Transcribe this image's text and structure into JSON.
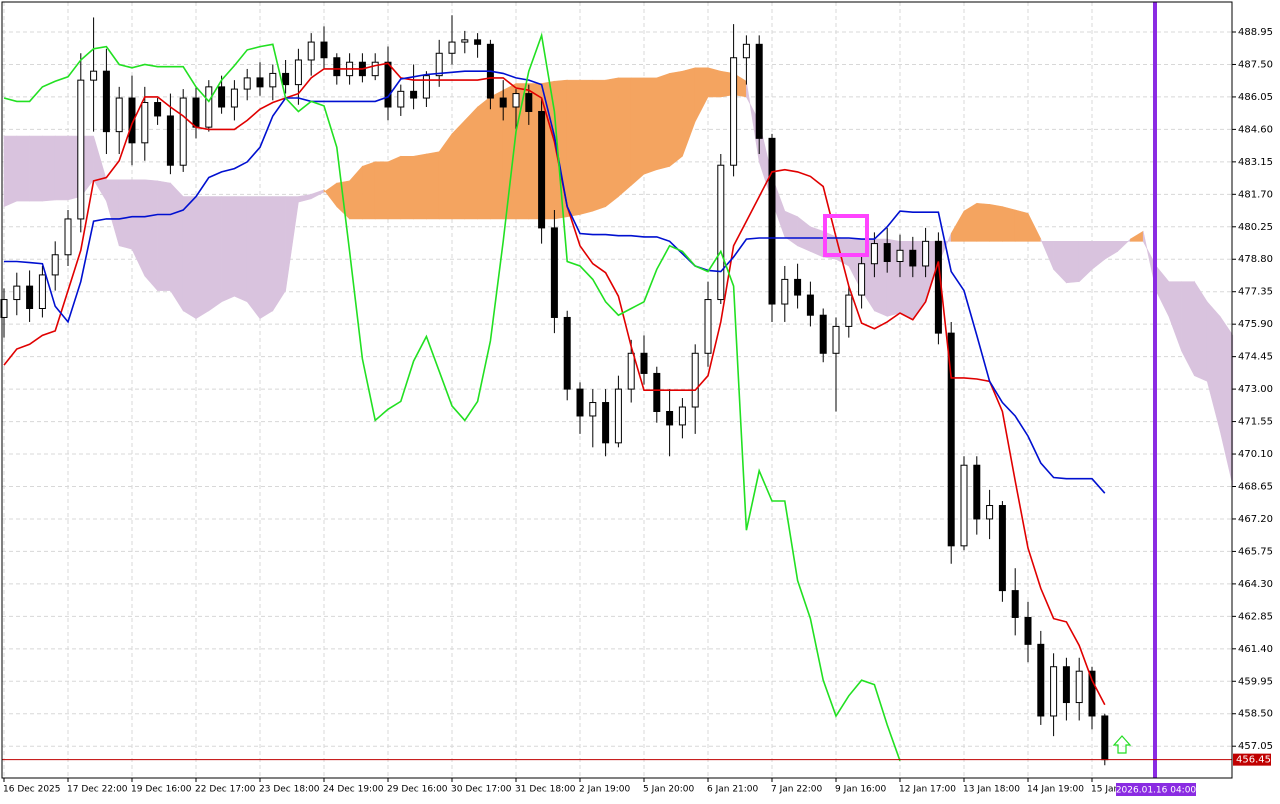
{
  "chart_data": {
    "type": "candlestick",
    "categories": [
      "16 Dec 2025",
      null,
      null,
      null,
      null,
      "17 Dec 22:00",
      null,
      null,
      null,
      null,
      "19 Dec 16:00",
      null,
      null,
      null,
      null,
      "22 Dec 17:00",
      null,
      null,
      null,
      null,
      "23 Dec 18:00",
      null,
      null,
      null,
      null,
      "24 Dec 19:00",
      null,
      null,
      null,
      null,
      "29 Dec 16:00",
      null,
      null,
      null,
      null,
      "30 Dec 17:00",
      null,
      null,
      null,
      null,
      "31 Dec 18:00",
      null,
      null,
      null,
      null,
      "2 Jan 19:00",
      null,
      null,
      null,
      null,
      "5 Jan 20:00",
      null,
      null,
      null,
      null,
      "6 Jan 21:00",
      null,
      null,
      null,
      null,
      "7 Jan 22:00",
      null,
      null,
      null,
      null,
      "9 Jan 16:00",
      null,
      null,
      null,
      null,
      "12 Jan 17:00",
      null,
      null,
      null,
      null,
      "13 Jan 18:00",
      null,
      null,
      null,
      null,
      "14 Jan 19:00",
      null,
      null,
      null,
      null,
      "15 Jan",
      null,
      null,
      null,
      null,
      null,
      null,
      null,
      null,
      null,
      null,
      null
    ],
    "open": [
      476.2,
      477.0,
      477.6,
      476.6,
      478.1,
      479.0,
      480.6,
      486.8,
      487.2,
      484.5,
      486.0,
      484.0,
      485.8,
      485.2,
      483.0,
      486.0,
      484.7,
      486.5,
      485.6,
      486.4,
      486.9,
      486.5,
      487.1,
      486.6,
      487.7,
      488.5,
      487.8,
      487.0,
      487.6,
      487.0,
      487.6,
      485.6,
      486.3,
      486.0,
      487.0,
      488.0,
      488.5,
      488.6,
      488.4,
      486.0,
      485.6,
      486.2,
      485.4,
      480.2,
      476.2,
      473.0,
      471.8,
      472.4,
      470.6,
      473.0,
      474.6,
      473.7,
      472.0,
      471.4,
      472.2,
      474.6,
      477.0,
      483.0,
      487.8,
      488.4,
      484.2,
      476.8,
      477.9,
      477.2,
      476.3,
      474.6,
      475.8,
      477.2,
      478.6,
      479.5,
      478.7,
      479.2,
      478.5,
      479.6,
      475.5,
      466.0,
      469.6,
      467.2,
      467.8,
      464.0,
      462.8,
      461.6,
      458.4,
      460.6,
      459.0,
      460.4,
      458.4,
      null,
      null,
      null,
      null,
      null,
      null,
      null,
      null,
      null,
      null
    ],
    "high": [
      477.5,
      478.2,
      478.3,
      478.5,
      479.6,
      481.0,
      488.0,
      489.6,
      488.2,
      486.5,
      487.0,
      486.5,
      486.0,
      486.2,
      486.4,
      486.5,
      486.8,
      487.0,
      486.8,
      487.3,
      487.6,
      487.5,
      487.7,
      488.2,
      488.9,
      489.2,
      488.0,
      488.0,
      488.0,
      488.0,
      488.3,
      486.6,
      487.5,
      487.2,
      488.6,
      489.7,
      489.0,
      488.9,
      488.6,
      486.8,
      486.4,
      486.6,
      486.0,
      481.0,
      476.5,
      473.3,
      473.0,
      473.0,
      473.6,
      475.2,
      475.4,
      474.0,
      473.0,
      472.6,
      475.0,
      477.8,
      483.5,
      489.3,
      488.8,
      488.8,
      484.4,
      478.5,
      478.6,
      477.8,
      476.6,
      476.2,
      477.6,
      479.0,
      480.0,
      480.2,
      479.9,
      479.8,
      480.2,
      480.0,
      476.0,
      470.0,
      470.0,
      468.5,
      468.0,
      465.0,
      463.5,
      462.2,
      461.2,
      461.0,
      461.0,
      460.6,
      458.5,
      null,
      null,
      null,
      null,
      null,
      null,
      null,
      null,
      null,
      null
    ],
    "low": [
      475.3,
      476.3,
      476.0,
      476.2,
      477.4,
      478.5,
      480.0,
      484.5,
      483.5,
      483.5,
      483.0,
      483.2,
      484.8,
      482.6,
      482.7,
      484.2,
      484.5,
      485.3,
      485.0,
      485.9,
      486.1,
      485.9,
      486.2,
      485.7,
      487.0,
      487.3,
      486.6,
      486.6,
      486.7,
      486.8,
      485.0,
      485.2,
      485.5,
      485.6,
      486.5,
      487.5,
      488.0,
      487.8,
      485.5,
      485.0,
      484.6,
      484.8,
      479.5,
      475.5,
      472.5,
      471.0,
      470.4,
      470.0,
      470.4,
      472.4,
      473.2,
      471.5,
      470.0,
      470.8,
      471.0,
      474.0,
      476.8,
      482.5,
      486.6,
      483.5,
      476.0,
      476.0,
      476.6,
      475.8,
      474.2,
      472.0,
      475.3,
      476.6,
      478.0,
      478.2,
      478.0,
      478.0,
      478.0,
      475.0,
      465.2,
      465.8,
      466.5,
      466.3,
      463.5,
      462.0,
      460.8,
      458.0,
      457.5,
      458.2,
      458.2,
      457.8,
      456.2,
      null,
      null,
      null,
      null,
      null,
      null,
      null,
      null,
      null,
      null
    ],
    "close": [
      477.0,
      477.6,
      476.6,
      478.1,
      479.0,
      480.6,
      486.8,
      487.2,
      484.5,
      486.0,
      484.0,
      485.8,
      485.2,
      483.0,
      486.0,
      484.7,
      486.5,
      485.6,
      486.4,
      486.9,
      486.5,
      487.1,
      486.6,
      487.7,
      488.5,
      487.8,
      487.0,
      487.6,
      487.0,
      487.6,
      485.6,
      486.3,
      486.0,
      487.0,
      488.0,
      488.5,
      488.6,
      488.4,
      486.0,
      485.6,
      486.2,
      485.4,
      480.2,
      476.2,
      473.0,
      471.8,
      472.4,
      470.6,
      473.0,
      474.6,
      473.7,
      472.0,
      471.4,
      472.2,
      474.6,
      477.0,
      483.0,
      487.8,
      488.4,
      484.2,
      476.8,
      477.9,
      477.2,
      476.3,
      474.6,
      475.8,
      477.2,
      478.6,
      479.5,
      478.7,
      479.2,
      478.5,
      479.6,
      475.5,
      466.0,
      469.6,
      467.2,
      467.8,
      464.0,
      462.8,
      461.6,
      458.4,
      460.6,
      459.0,
      460.4,
      458.4,
      456.45,
      null,
      null,
      null,
      null,
      null,
      null,
      null,
      null,
      null,
      null
    ],
    "up_color": "#ffffff",
    "down_color": "#000000",
    "wick_color": "#000000",
    "lines": [
      {
        "color": "#e00000",
        "values": [
          474.07,
          474.79,
          475.0,
          475.4,
          475.6,
          477.4,
          479.2,
          482.3,
          482.45,
          483.2,
          484.85,
          486.05,
          486.05,
          485.6,
          485.2,
          484.7,
          484.6,
          484.6,
          484.6,
          485.0,
          485.5,
          485.8,
          486.0,
          486.2,
          486.9,
          487.3,
          487.3,
          487.3,
          487.3,
          487.45,
          487.55,
          486.9,
          486.8,
          486.8,
          486.8,
          486.8,
          486.8,
          486.8,
          486.9,
          486.9,
          486.45,
          486.35,
          486.0,
          484.05,
          481.15,
          479.4,
          478.6,
          478.2,
          477.15,
          474.9,
          472.95,
          472.95,
          472.95,
          472.95,
          472.95,
          473.6,
          476.0,
          479.4,
          480.5,
          481.6,
          482.7,
          482.8,
          482.7,
          482.5,
          482.05,
          479.8,
          477.6,
          475.95,
          475.7,
          476.0,
          476.4,
          476.1,
          476.9,
          478.7,
          473.5,
          473.5,
          473.45,
          473.35,
          472.0,
          468.9,
          465.9,
          464.1,
          462.75,
          462.6,
          461.55,
          460.0,
          458.9,
          null,
          null,
          null,
          null,
          null,
          null,
          null,
          null,
          null,
          null
        ]
      },
      {
        "color": "#0010d0",
        "values": [
          478.7,
          478.7,
          478.65,
          478.6,
          476.7,
          476.0,
          477.8,
          480.5,
          480.6,
          480.6,
          480.7,
          480.7,
          480.8,
          480.8,
          481.0,
          481.6,
          482.45,
          482.7,
          482.85,
          483.15,
          483.8,
          485.2,
          486.0,
          486.0,
          485.85,
          485.85,
          485.85,
          485.85,
          485.85,
          485.85,
          486.05,
          486.85,
          486.95,
          487.05,
          487.1,
          487.15,
          487.2,
          487.2,
          487.2,
          487.1,
          486.9,
          486.8,
          486.6,
          484.3,
          481.15,
          479.95,
          479.9,
          479.9,
          479.85,
          479.85,
          479.8,
          479.8,
          479.6,
          479.05,
          478.5,
          478.3,
          478.25,
          478.9,
          479.7,
          479.75,
          479.75,
          479.75,
          479.75,
          479.75,
          479.75,
          479.75,
          479.75,
          479.7,
          479.7,
          480.25,
          480.95,
          480.9,
          480.9,
          480.9,
          478.25,
          477.4,
          475.4,
          473.35,
          472.4,
          471.8,
          470.9,
          469.7,
          469.05,
          469.0,
          469.0,
          469.0,
          468.35,
          null,
          null,
          null,
          null,
          null,
          null,
          null,
          null,
          null,
          null
        ]
      },
      {
        "color": "#22e022",
        "values": [
          486.0,
          485.85,
          485.85,
          486.5,
          486.75,
          486.95,
          487.7,
          488.2,
          488.3,
          487.5,
          487.35,
          487.5,
          487.4,
          487.4,
          487.4,
          486.5,
          485.85,
          486.8,
          487.45,
          488.15,
          488.3,
          488.4,
          486.0,
          485.4,
          485.85,
          485.65,
          483.8,
          479.15,
          474.35,
          471.6,
          472.1,
          472.45,
          474.25,
          475.35,
          473.8,
          472.25,
          471.6,
          472.45,
          475.15,
          479.6,
          484.5,
          487.2,
          488.8,
          485.4,
          478.7,
          478.5,
          477.9,
          476.9,
          476.3,
          476.6,
          476.9,
          478.35,
          479.4,
          479.15,
          478.5,
          478.25,
          479.15,
          477.6,
          466.7,
          469.35,
          468.0,
          468.0,
          464.45,
          462.75,
          460.0,
          458.4,
          459.3,
          460.0,
          459.8,
          458.0,
          456.4,
          null,
          null,
          null,
          null,
          null,
          null,
          null,
          null,
          null,
          null,
          null,
          null,
          null,
          null,
          null,
          null,
          null,
          null,
          null,
          null,
          null,
          null,
          null,
          null
        ]
      }
    ],
    "senkou_a": [
      484.3,
      484.3,
      484.3,
      484.3,
      484.3,
      484.3,
      484.3,
      484.3,
      482.35,
      482.35,
      482.35,
      482.35,
      482.3,
      482.2,
      481.6,
      481.6,
      481.6,
      481.6,
      481.6,
      481.6,
      481.6,
      481.6,
      481.6,
      481.6,
      481.7,
      481.9,
      481.15,
      480.6,
      480.6,
      480.6,
      480.6,
      480.6,
      480.6,
      480.6,
      480.6,
      480.6,
      480.6,
      480.6,
      480.6,
      480.6,
      480.6,
      480.6,
      480.6,
      480.6,
      480.7,
      480.8,
      480.95,
      481.15,
      481.6,
      482.1,
      482.6,
      482.8,
      482.95,
      483.4,
      484.95,
      486.05,
      486.05,
      486.15,
      486.05,
      484.95,
      482.5,
      480.95,
      480.7,
      480.25,
      480.05,
      479.8,
      479.7,
      479.7,
      479.7,
      479.7,
      479.6,
      479.6,
      479.6,
      479.6,
      479.6,
      479.6,
      479.6,
      479.6,
      479.6,
      479.6,
      479.6,
      479.6,
      479.6,
      479.6,
      479.6,
      479.6,
      479.6,
      479.6,
      479.6,
      479.6,
      478.5,
      477.8,
      477.8,
      477.8,
      476.9,
      476.25,
      475.4
    ],
    "senkou_b": [
      481.15,
      481.4,
      481.4,
      481.4,
      481.45,
      481.45,
      481.6,
      482.35,
      481.4,
      479.4,
      479.25,
      478.05,
      477.4,
      477.4,
      476.5,
      476.15,
      476.5,
      476.9,
      477.15,
      476.9,
      476.15,
      476.5,
      477.4,
      481.35,
      481.5,
      481.8,
      482.2,
      482.3,
      482.95,
      483.15,
      483.15,
      483.4,
      483.4,
      483.5,
      483.6,
      484.4,
      485.0,
      485.6,
      486.05,
      486.35,
      486.65,
      486.65,
      486.65,
      486.75,
      486.8,
      486.8,
      486.8,
      486.8,
      486.9,
      486.9,
      486.9,
      486.9,
      487.1,
      487.2,
      487.35,
      487.35,
      487.2,
      487.1,
      486.75,
      483.15,
      481.4,
      479.8,
      479.4,
      479.15,
      478.9,
      478.8,
      478.5,
      477.4,
      476.5,
      476.25,
      476.4,
      476.1,
      476.9,
      478.6,
      479.95,
      480.95,
      481.3,
      481.25,
      481.15,
      481.0,
      480.85,
      479.7,
      478.35,
      477.75,
      477.8,
      478.35,
      478.8,
      479.15,
      479.7,
      480.05,
      477.4,
      476.25,
      474.7,
      473.6,
      473.35,
      471.15,
      468.7
    ],
    "cloud_up_color": "#d9c3de",
    "cloud_down_color": "#f4a460",
    "ylim": [
      455.63,
      490.29
    ],
    "yticks": [
      488.95,
      {
        "value": 487.5,
        "label": "487.50"
      },
      486.05,
      {
        "value": 484.6,
        "label": "484.60"
      },
      483.15,
      {
        "value": 481.7,
        "label": "481.70"
      },
      480.25,
      {
        "value": 478.8,
        "label": "478.80"
      },
      477.35,
      {
        "value": 475.9,
        "label": "475.90"
      },
      474.45,
      {
        "value": 473.0,
        "label": "473.00"
      },
      471.55,
      {
        "value": 470.1,
        "label": "470.10"
      },
      468.65,
      {
        "value": 467.2,
        "label": "467.20"
      },
      465.75,
      {
        "value": 464.3,
        "label": "464.30"
      },
      462.85,
      {
        "value": 461.4,
        "label": "461.40"
      },
      459.95,
      {
        "value": 458.5,
        "label": "458.50"
      },
      457.05
    ],
    "grid": true,
    "price_line": 456.45,
    "price_line_color": "#c00000",
    "cursor_label": "2026.01.16 04:00"
  }
}
